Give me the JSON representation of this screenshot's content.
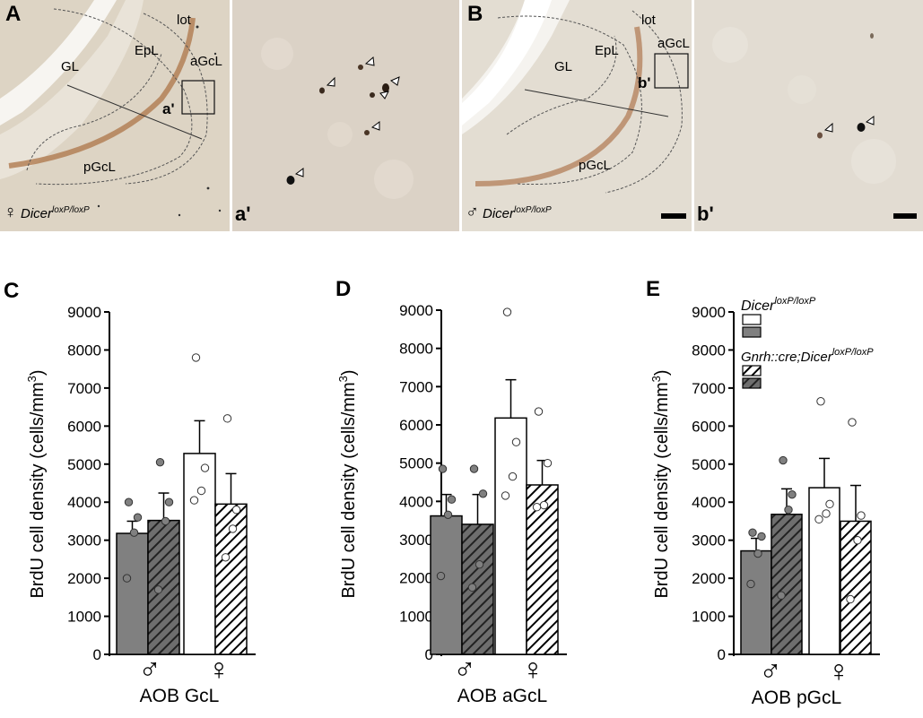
{
  "photos": {
    "A": {
      "letter": "A",
      "regions": [
        "GL",
        "EpL",
        "lot",
        "aGcL",
        "pGcL"
      ],
      "inset_label": "a'",
      "sex_symbol": "♀",
      "genotype": "Dicer",
      "genotype_sup": "loxP/loxP"
    },
    "a_prime": {
      "label": "a'"
    },
    "B": {
      "letter": "B",
      "regions": [
        "GL",
        "EpL",
        "lot",
        "aGcL",
        "pGcL"
      ],
      "inset_label": "b'",
      "sex_symbol": "♂",
      "genotype": "Dicer",
      "genotype_sup": "loxP/loxP"
    },
    "b_prime": {
      "label": "b'"
    }
  },
  "legend": {
    "group1_name": "Dicer",
    "group1_sup": "loxP/loxP",
    "group2_name": "Gnrh::cre;Dicer",
    "group2_sup": "loxP/loxP"
  },
  "colors": {
    "male_fill": "#808080",
    "male_hatch_bg": "#6e6e6e",
    "female_fill": "#ffffff",
    "tissue": "#dcd2c2"
  },
  "chart_data": [
    {
      "panel": "C",
      "type": "bar",
      "ylabel": "BrdU cell density (cells/mm³)",
      "ylabel_main": "BrdU cell density (cells/mm",
      "ylabel_sup": "3",
      "ylabel_end": ")",
      "ylim": [
        0,
        9000
      ],
      "yticks": [
        0,
        1000,
        2000,
        3000,
        4000,
        5000,
        6000,
        7000,
        8000,
        9000
      ],
      "groups": [
        "♂",
        "♀"
      ],
      "xlabel": "AOB GcL",
      "bars": [
        {
          "sex": "male",
          "genotype": "Dicer loxP/loxP",
          "value": 3180,
          "sem": 320,
          "points": [
            4000,
            3600,
            3200,
            2000
          ]
        },
        {
          "sex": "male",
          "genotype": "Gnrh::cre;Dicer loxP/loxP",
          "value": 3520,
          "sem": 720,
          "points": [
            5050,
            4000,
            3500,
            1700
          ]
        },
        {
          "sex": "female",
          "genotype": "Dicer loxP/loxP",
          "value": 5280,
          "sem": 860,
          "points": [
            7800,
            4900,
            4300,
            4050
          ]
        },
        {
          "sex": "female",
          "genotype": "Gnrh::cre;Dicer loxP/loxP",
          "value": 3950,
          "sem": 800,
          "points": [
            6200,
            3800,
            3300,
            2550
          ]
        }
      ]
    },
    {
      "panel": "D",
      "type": "bar",
      "ylabel": "BrdU cell density (cells/mm³)",
      "ylabel_main": "BrdU cell density (cells/mm",
      "ylabel_sup": "3",
      "ylabel_end": ")",
      "ylim": [
        0,
        9000
      ],
      "yticks": [
        0,
        1000,
        2000,
        3000,
        4000,
        5000,
        6000,
        7000,
        8000,
        9000
      ],
      "groups": [
        "♂",
        "♀"
      ],
      "xlabel": "AOB aGcL",
      "bars": [
        {
          "sex": "male",
          "genotype": "Dicer loxP/loxP",
          "value": 3620,
          "sem": 560,
          "points": [
            4850,
            4050,
            3650,
            2050
          ]
        },
        {
          "sex": "male",
          "genotype": "Gnrh::cre;Dicer loxP/loxP",
          "value": 3400,
          "sem": 780,
          "points": [
            4850,
            4200,
            2350,
            1750
          ]
        },
        {
          "sex": "female",
          "genotype": "Dicer loxP/loxP",
          "value": 6180,
          "sem": 1000,
          "points": [
            8950,
            5550,
            4650,
            4150
          ]
        },
        {
          "sex": "female",
          "genotype": "Gnrh::cre;Dicer loxP/loxP",
          "value": 4430,
          "sem": 640,
          "points": [
            6350,
            5000,
            3900,
            3850
          ]
        }
      ]
    },
    {
      "panel": "E",
      "type": "bar",
      "ylabel": "BrdU cell density (cells/mm³)",
      "ylabel_main": "BrdU cell density (cells/mm",
      "ylabel_sup": "3",
      "ylabel_end": ")",
      "ylim": [
        0,
        9000
      ],
      "yticks": [
        0,
        1000,
        2000,
        3000,
        4000,
        5000,
        6000,
        7000,
        8000,
        9000
      ],
      "groups": [
        "♂",
        "♀"
      ],
      "xlabel": "AOB pGcL",
      "bars": [
        {
          "sex": "male",
          "genotype": "Dicer loxP/loxP",
          "value": 2720,
          "sem": 330,
          "points": [
            3200,
            3100,
            2650,
            1850
          ]
        },
        {
          "sex": "male",
          "genotype": "Gnrh::cre;Dicer loxP/loxP",
          "value": 3680,
          "sem": 670,
          "points": [
            5100,
            4200,
            3800,
            1550
          ]
        },
        {
          "sex": "female",
          "genotype": "Dicer loxP/loxP",
          "value": 4380,
          "sem": 770,
          "points": [
            6650,
            3950,
            3700,
            3550
          ]
        },
        {
          "sex": "female",
          "genotype": "Gnrh::cre;Dicer loxP/loxP",
          "value": 3500,
          "sem": 940,
          "points": [
            6100,
            3650,
            3000,
            1450
          ]
        }
      ]
    }
  ]
}
